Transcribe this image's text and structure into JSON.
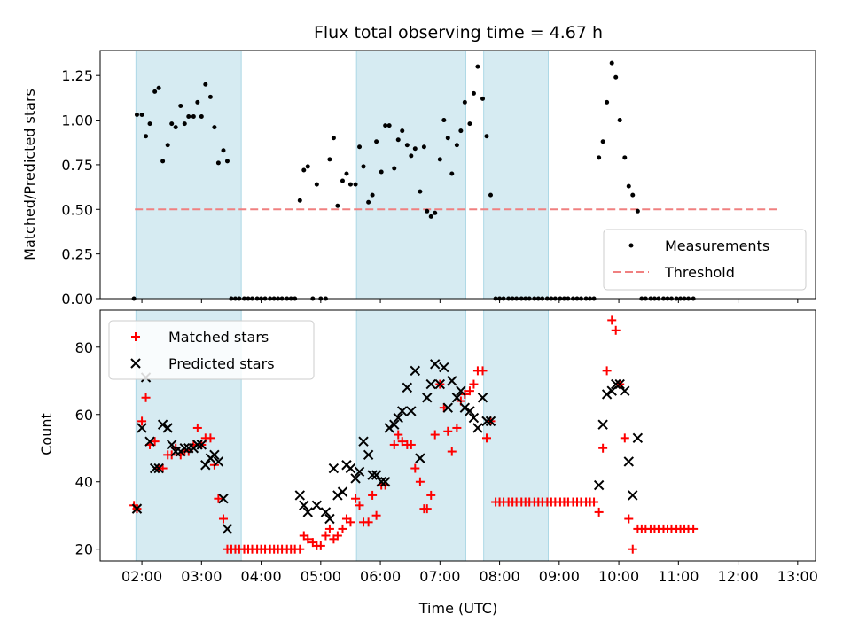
{
  "chart_data": {
    "type": "scatter",
    "title": "Flux total observing time = 4.67 h",
    "xlabel": "Time (UTC)",
    "x_ticks": [
      "02:00",
      "03:00",
      "04:00",
      "05:00",
      "06:00",
      "07:00",
      "08:00",
      "09:00",
      "10:00",
      "11:00",
      "12:00",
      "13:00"
    ],
    "shaded_intervals_utc": [
      [
        "01:54",
        "03:40"
      ],
      [
        "05:36",
        "07:26"
      ],
      [
        "07:44",
        "08:49"
      ]
    ],
    "colors": {
      "shade": "#add8e6",
      "measurements": "#000000",
      "threshold": "#f08080",
      "matched": "#ff0000",
      "predicted": "#000000"
    },
    "top_panel": {
      "ylabel": "Matched/Predicted stars",
      "ylim": [
        0,
        1.39
      ],
      "y_ticks": [
        "0.00",
        "0.25",
        "0.50",
        "0.75",
        "1.00",
        "1.25"
      ],
      "threshold": 0.5,
      "threshold_range_utc": [
        "01:53",
        "12:40"
      ],
      "legend": {
        "position": "lower right",
        "entries": [
          "Measurements",
          "Threshold"
        ]
      },
      "measurements": [
        [
          "01:52",
          0.0
        ],
        [
          "01:55",
          1.03
        ],
        [
          "02:00",
          1.03
        ],
        [
          "02:04",
          0.91
        ],
        [
          "02:08",
          0.98
        ],
        [
          "02:13",
          1.16
        ],
        [
          "02:17",
          1.18
        ],
        [
          "02:21",
          0.77
        ],
        [
          "02:26",
          0.86
        ],
        [
          "02:30",
          0.98
        ],
        [
          "02:34",
          0.96
        ],
        [
          "02:39",
          1.08
        ],
        [
          "02:43",
          0.98
        ],
        [
          "02:47",
          1.02
        ],
        [
          "02:52",
          1.02
        ],
        [
          "02:56",
          1.1
        ],
        [
          "03:00",
          1.02
        ],
        [
          "03:04",
          1.2
        ],
        [
          "03:09",
          1.13
        ],
        [
          "03:13",
          0.96
        ],
        [
          "03:17",
          0.76
        ],
        [
          "03:22",
          0.83
        ],
        [
          "03:26",
          0.77
        ],
        [
          "03:30",
          0.0
        ],
        [
          "03:34",
          0.0
        ],
        [
          "03:38",
          0.0
        ],
        [
          "03:43",
          0.0
        ],
        [
          "03:47",
          0.0
        ],
        [
          "03:51",
          0.0
        ],
        [
          "03:56",
          0.0
        ],
        [
          "04:00",
          0.0
        ],
        [
          "04:04",
          0.0
        ],
        [
          "04:09",
          0.0
        ],
        [
          "04:13",
          0.0
        ],
        [
          "04:17",
          0.0
        ],
        [
          "04:21",
          0.0
        ],
        [
          "04:26",
          0.0
        ],
        [
          "04:30",
          0.0
        ],
        [
          "04:34",
          0.0
        ],
        [
          "04:39",
          0.55
        ],
        [
          "04:43",
          0.72
        ],
        [
          "04:47",
          0.74
        ],
        [
          "04:52",
          0.0
        ],
        [
          "04:56",
          0.64
        ],
        [
          "05:00",
          0.0
        ],
        [
          "05:05",
          0.0
        ],
        [
          "05:09",
          0.78
        ],
        [
          "05:13",
          0.9
        ],
        [
          "05:17",
          0.52
        ],
        [
          "05:22",
          0.66
        ],
        [
          "05:26",
          0.7
        ],
        [
          "05:30",
          0.64
        ],
        [
          "05:35",
          0.64
        ],
        [
          "05:39",
          0.85
        ],
        [
          "05:43",
          0.74
        ],
        [
          "05:48",
          0.54
        ],
        [
          "05:52",
          0.58
        ],
        [
          "05:56",
          0.88
        ],
        [
          "06:01",
          0.71
        ],
        [
          "06:05",
          0.97
        ],
        [
          "06:09",
          0.97
        ],
        [
          "06:14",
          0.73
        ],
        [
          "06:18",
          0.89
        ],
        [
          "06:22",
          0.94
        ],
        [
          "06:27",
          0.86
        ],
        [
          "06:31",
          0.8
        ],
        [
          "06:35",
          0.84
        ],
        [
          "06:40",
          0.6
        ],
        [
          "06:44",
          0.85
        ],
        [
          "06:47",
          0.49
        ],
        [
          "06:51",
          0.46
        ],
        [
          "06:55",
          0.48
        ],
        [
          "07:00",
          0.78
        ],
        [
          "07:04",
          1.0
        ],
        [
          "07:08",
          0.9
        ],
        [
          "07:12",
          0.7
        ],
        [
          "07:17",
          0.86
        ],
        [
          "07:21",
          0.94
        ],
        [
          "07:25",
          1.1
        ],
        [
          "07:30",
          0.98
        ],
        [
          "07:34",
          1.15
        ],
        [
          "07:38",
          1.3
        ],
        [
          "07:43",
          1.12
        ],
        [
          "07:47",
          0.91
        ],
        [
          "07:51",
          0.58
        ],
        [
          "07:56",
          0.0
        ],
        [
          "08:00",
          0.0
        ],
        [
          "08:04",
          0.0
        ],
        [
          "08:09",
          0.0
        ],
        [
          "08:13",
          0.0
        ],
        [
          "08:17",
          0.0
        ],
        [
          "08:22",
          0.0
        ],
        [
          "08:26",
          0.0
        ],
        [
          "08:30",
          0.0
        ],
        [
          "08:35",
          0.0
        ],
        [
          "08:39",
          0.0
        ],
        [
          "08:43",
          0.0
        ],
        [
          "08:48",
          0.0
        ],
        [
          "08:52",
          0.0
        ],
        [
          "08:56",
          0.0
        ],
        [
          "09:01",
          0.0
        ],
        [
          "09:05",
          0.0
        ],
        [
          "09:09",
          0.0
        ],
        [
          "09:14",
          0.0
        ],
        [
          "09:18",
          0.0
        ],
        [
          "09:22",
          0.0
        ],
        [
          "09:27",
          0.0
        ],
        [
          "09:31",
          0.0
        ],
        [
          "09:35",
          0.0
        ],
        [
          "09:40",
          0.79
        ],
        [
          "09:44",
          0.88
        ],
        [
          "09:48",
          1.1
        ],
        [
          "09:53",
          1.32
        ],
        [
          "09:57",
          1.24
        ],
        [
          "10:01",
          1.0
        ],
        [
          "10:06",
          0.79
        ],
        [
          "10:10",
          0.63
        ],
        [
          "10:14",
          0.58
        ],
        [
          "10:19",
          0.49
        ],
        [
          "10:23",
          0.0
        ],
        [
          "10:27",
          0.0
        ],
        [
          "10:32",
          0.0
        ],
        [
          "10:36",
          0.0
        ],
        [
          "10:40",
          0.0
        ],
        [
          "10:45",
          0.0
        ],
        [
          "10:49",
          0.0
        ],
        [
          "10:53",
          0.0
        ],
        [
          "10:58",
          0.0
        ],
        [
          "11:02",
          0.0
        ],
        [
          "11:06",
          0.0
        ],
        [
          "11:10",
          0.0
        ],
        [
          "11:15",
          0.0
        ]
      ]
    },
    "bottom_panel": {
      "ylabel": "Count",
      "ylim": [
        16.5,
        91
      ],
      "y_ticks": [
        "20",
        "40",
        "60",
        "80"
      ],
      "legend": {
        "position": "upper left",
        "entries": [
          "Matched stars",
          "Predicted stars"
        ]
      },
      "matched": [
        [
          "01:52",
          33
        ],
        [
          "01:55",
          32
        ],
        [
          "02:00",
          58
        ],
        [
          "02:04",
          65
        ],
        [
          "02:08",
          51
        ],
        [
          "02:13",
          52
        ],
        [
          "02:17",
          44
        ],
        [
          "02:21",
          44
        ],
        [
          "02:26",
          48
        ],
        [
          "02:30",
          48
        ],
        [
          "02:34",
          50
        ],
        [
          "02:39",
          48
        ],
        [
          "02:43",
          49
        ],
        [
          "02:47",
          49
        ],
        [
          "02:52",
          51
        ],
        [
          "02:56",
          56
        ],
        [
          "03:00",
          51
        ],
        [
          "03:04",
          53
        ],
        [
          "03:09",
          53
        ],
        [
          "03:13",
          45
        ],
        [
          "03:17",
          35
        ],
        [
          "03:22",
          29
        ],
        [
          "03:26",
          20
        ],
        [
          "03:30",
          20
        ],
        [
          "03:34",
          20
        ],
        [
          "03:38",
          20
        ],
        [
          "03:43",
          20
        ],
        [
          "03:47",
          20
        ],
        [
          "03:51",
          20
        ],
        [
          "03:56",
          20
        ],
        [
          "04:00",
          20
        ],
        [
          "04:04",
          20
        ],
        [
          "04:09",
          20
        ],
        [
          "04:13",
          20
        ],
        [
          "04:17",
          20
        ],
        [
          "04:21",
          20
        ],
        [
          "04:26",
          20
        ],
        [
          "04:30",
          20
        ],
        [
          "04:34",
          20
        ],
        [
          "04:39",
          20
        ],
        [
          "04:43",
          24
        ],
        [
          "04:47",
          23
        ],
        [
          "04:52",
          22
        ],
        [
          "04:56",
          21
        ],
        [
          "05:00",
          21
        ],
        [
          "05:05",
          24
        ],
        [
          "05:09",
          26
        ],
        [
          "05:13",
          23
        ],
        [
          "05:17",
          24
        ],
        [
          "05:22",
          26
        ],
        [
          "05:26",
          29
        ],
        [
          "05:30",
          28
        ],
        [
          "05:35",
          35
        ],
        [
          "05:39",
          33
        ],
        [
          "05:43",
          28
        ],
        [
          "05:48",
          28
        ],
        [
          "05:52",
          36
        ],
        [
          "05:56",
          30
        ],
        [
          "06:01",
          39
        ],
        [
          "06:05",
          39
        ],
        [
          "06:14",
          51
        ],
        [
          "06:18",
          54
        ],
        [
          "06:22",
          52
        ],
        [
          "06:27",
          51
        ],
        [
          "06:31",
          51
        ],
        [
          "06:35",
          44
        ],
        [
          "06:40",
          40
        ],
        [
          "06:44",
          32
        ],
        [
          "06:47",
          32
        ],
        [
          "06:51",
          36
        ],
        [
          "06:55",
          54
        ],
        [
          "07:00",
          69
        ],
        [
          "07:04",
          62
        ],
        [
          "07:08",
          55
        ],
        [
          "07:12",
          49
        ],
        [
          "07:17",
          56
        ],
        [
          "07:21",
          64
        ],
        [
          "07:25",
          66
        ],
        [
          "07:30",
          67
        ],
        [
          "07:34",
          69
        ],
        [
          "07:38",
          73
        ],
        [
          "07:43",
          73
        ],
        [
          "07:47",
          53
        ],
        [
          "07:51",
          58
        ],
        [
          "07:56",
          34
        ],
        [
          "08:00",
          34
        ],
        [
          "08:04",
          34
        ],
        [
          "08:09",
          34
        ],
        [
          "08:13",
          34
        ],
        [
          "08:17",
          34
        ],
        [
          "08:22",
          34
        ],
        [
          "08:26",
          34
        ],
        [
          "08:30",
          34
        ],
        [
          "08:35",
          34
        ],
        [
          "08:39",
          34
        ],
        [
          "08:43",
          34
        ],
        [
          "08:48",
          34
        ],
        [
          "08:52",
          34
        ],
        [
          "08:56",
          34
        ],
        [
          "09:01",
          34
        ],
        [
          "09:05",
          34
        ],
        [
          "09:09",
          34
        ],
        [
          "09:14",
          34
        ],
        [
          "09:18",
          34
        ],
        [
          "09:22",
          34
        ],
        [
          "09:27",
          34
        ],
        [
          "09:31",
          34
        ],
        [
          "09:35",
          34
        ],
        [
          "09:40",
          31
        ],
        [
          "09:44",
          50
        ],
        [
          "09:48",
          73
        ],
        [
          "09:53",
          88
        ],
        [
          "09:57",
          85
        ],
        [
          "10:01",
          69
        ],
        [
          "10:06",
          53
        ],
        [
          "10:10",
          29
        ],
        [
          "10:14",
          20
        ],
        [
          "10:19",
          26
        ],
        [
          "10:23",
          26
        ],
        [
          "10:27",
          26
        ],
        [
          "10:32",
          26
        ],
        [
          "10:36",
          26
        ],
        [
          "10:40",
          26
        ],
        [
          "10:45",
          26
        ],
        [
          "10:49",
          26
        ],
        [
          "10:53",
          26
        ],
        [
          "10:58",
          26
        ],
        [
          "11:02",
          26
        ],
        [
          "11:06",
          26
        ],
        [
          "11:10",
          26
        ],
        [
          "11:15",
          26
        ]
      ],
      "predicted": [
        [
          "01:55",
          32
        ],
        [
          "02:00",
          56
        ],
        [
          "02:04",
          71
        ],
        [
          "02:08",
          52
        ],
        [
          "02:13",
          44
        ],
        [
          "02:17",
          44
        ],
        [
          "02:21",
          57
        ],
        [
          "02:26",
          56
        ],
        [
          "02:30",
          51
        ],
        [
          "02:34",
          49
        ],
        [
          "02:39",
          49
        ],
        [
          "02:43",
          50
        ],
        [
          "02:47",
          50
        ],
        [
          "02:52",
          50
        ],
        [
          "02:56",
          51
        ],
        [
          "03:00",
          51
        ],
        [
          "03:04",
          45
        ],
        [
          "03:09",
          47
        ],
        [
          "03:13",
          48
        ],
        [
          "03:17",
          46
        ],
        [
          "03:22",
          35
        ],
        [
          "03:26",
          26
        ],
        [
          "04:39",
          36
        ],
        [
          "04:43",
          33
        ],
        [
          "04:47",
          31
        ],
        [
          "04:56",
          33
        ],
        [
          "05:05",
          31
        ],
        [
          "05:09",
          29
        ],
        [
          "05:13",
          44
        ],
        [
          "05:17",
          36
        ],
        [
          "05:22",
          37
        ],
        [
          "05:26",
          45
        ],
        [
          "05:30",
          44
        ],
        [
          "05:35",
          41
        ],
        [
          "05:39",
          43
        ],
        [
          "05:43",
          52
        ],
        [
          "05:48",
          48
        ],
        [
          "05:52",
          42
        ],
        [
          "05:56",
          42
        ],
        [
          "06:01",
          40
        ],
        [
          "06:05",
          40
        ],
        [
          "06:09",
          56
        ],
        [
          "06:14",
          57
        ],
        [
          "06:18",
          59
        ],
        [
          "06:22",
          61
        ],
        [
          "06:27",
          68
        ],
        [
          "06:31",
          61
        ],
        [
          "06:35",
          73
        ],
        [
          "06:40",
          47
        ],
        [
          "06:47",
          65
        ],
        [
          "06:51",
          69
        ],
        [
          "06:55",
          75
        ],
        [
          "07:00",
          69
        ],
        [
          "07:04",
          74
        ],
        [
          "07:08",
          62
        ],
        [
          "07:12",
          70
        ],
        [
          "07:17",
          65
        ],
        [
          "07:21",
          67
        ],
        [
          "07:25",
          62
        ],
        [
          "07:30",
          61
        ],
        [
          "07:34",
          59
        ],
        [
          "07:38",
          56
        ],
        [
          "07:43",
          65
        ],
        [
          "07:47",
          58
        ],
        [
          "07:51",
          58
        ],
        [
          "09:40",
          39
        ],
        [
          "09:44",
          57
        ],
        [
          "09:48",
          66
        ],
        [
          "09:53",
          67
        ],
        [
          "09:57",
          69
        ],
        [
          "10:01",
          69
        ],
        [
          "10:06",
          67
        ],
        [
          "10:10",
          46
        ],
        [
          "10:14",
          36
        ],
        [
          "10:19",
          53
        ]
      ]
    }
  }
}
